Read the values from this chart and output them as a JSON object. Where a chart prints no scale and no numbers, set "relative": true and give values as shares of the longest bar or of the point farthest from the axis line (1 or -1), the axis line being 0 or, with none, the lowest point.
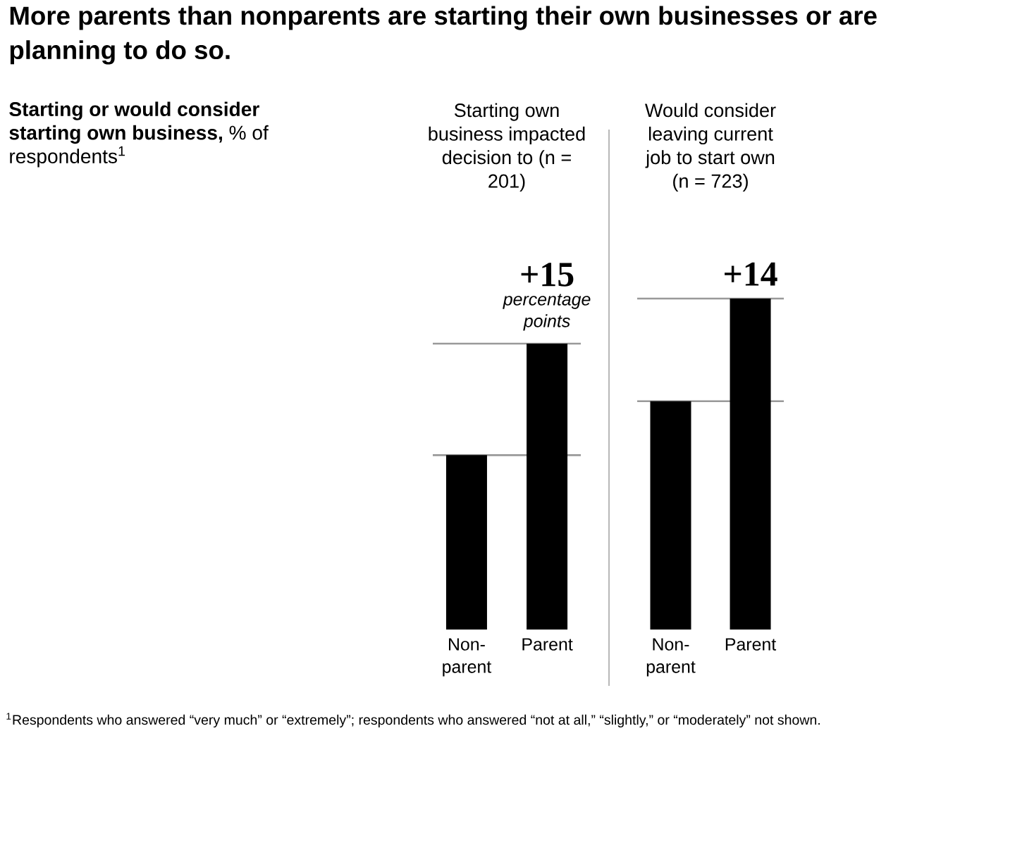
{
  "chart_data": [
    {
      "type": "bar",
      "title": "More parents than nonparents are starting their own businesses or are planning to do so.",
      "ylabel": "**Starting or would consider starting own business,** % of respondents$^{1}$",
      "subtitle": "Starting own business impacted decision to (n = 201)",
      "categories": [
        "Non-parent",
        "Parent"
      ],
      "values": [
        0.61,
        1
      ],
      "color": "#000000",
      "relative": true,
      "ref_lines": [
        {
          "axis": "y",
          "value": 0.61,
          "color": "#999999"
        },
        {
          "axis": "y",
          "value": 1,
          "color": "#999999"
        }
      ],
      "annotations": [
        {
          "text": "+15",
          "x": "Parent",
          "y": 1
        },
        "percentage points",
        "$^{1}$Respondents who answered “very much” or “extremely”; respondents who answered “not at all,” “slightly,” or “moderately” not shown."
      ]
    },
    {
      "type": "bar",
      "subtitle": "Would consider leaving current job to start own (n = 723)",
      "categories": [
        "Non-parent",
        "Parent"
      ],
      "values": [
        0.69,
        1
      ],
      "color": "#000000",
      "relative": true,
      "ref_lines": [
        {
          "axis": "y",
          "value": 0.69,
          "color": "#999999"
        },
        {
          "axis": "y",
          "value": 1,
          "color": "#999999"
        }
      ],
      "annotations": [
        {
          "text": "+14",
          "x": "Parent",
          "y": 1
        }
      ]
    }
  ]
}
